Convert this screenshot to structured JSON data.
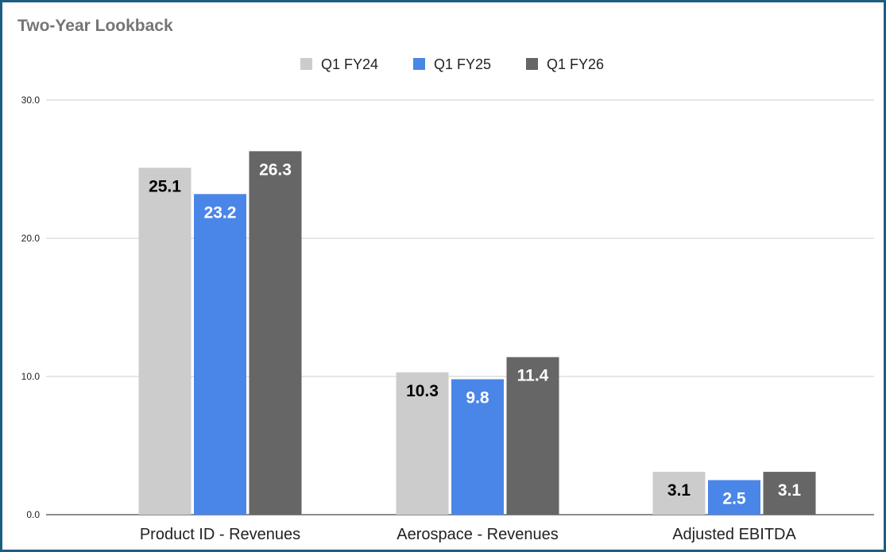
{
  "chart_data": {
    "type": "bar",
    "title": "Two-Year Lookback",
    "categories": [
      "Product ID - Revenues",
      "Aerospace - Revenues",
      "Adjusted EBITDA"
    ],
    "series": [
      {
        "name": "Q1 FY24",
        "color": "#cccccc",
        "label_color": "#000000",
        "values": [
          25.1,
          10.3,
          3.1
        ]
      },
      {
        "name": "Q1 FY25",
        "color": "#4a86e8",
        "label_color": "#ffffff",
        "values": [
          23.2,
          9.8,
          2.5
        ]
      },
      {
        "name": "Q1 FY26",
        "color": "#666666",
        "label_color": "#ffffff",
        "values": [
          26.3,
          11.4,
          3.1
        ]
      }
    ],
    "yticks": [
      "0.0",
      "10.0",
      "20.0",
      "30.0"
    ],
    "ylim": [
      0,
      30
    ],
    "xlabel": "",
    "ylabel": "",
    "grid": true,
    "legend": "top"
  }
}
